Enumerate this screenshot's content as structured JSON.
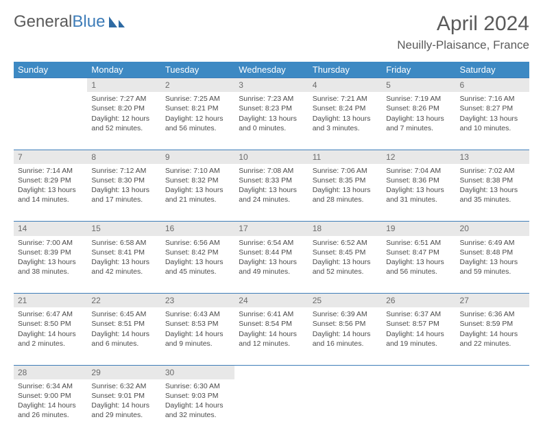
{
  "logo": {
    "part1": "General",
    "part2": "Blue"
  },
  "title": "April 2024",
  "location": "Neuilly-Plaisance, France",
  "header_color": "#3d89c3",
  "divider_color": "#3d7cb8",
  "daynum_bg": "#e8e8e8",
  "weekdays": [
    "Sunday",
    "Monday",
    "Tuesday",
    "Wednesday",
    "Thursday",
    "Friday",
    "Saturday"
  ],
  "weeks": [
    {
      "nums": [
        "",
        "1",
        "2",
        "3",
        "4",
        "5",
        "6"
      ],
      "cells": [
        null,
        {
          "sunrise": "Sunrise: 7:27 AM",
          "sunset": "Sunset: 8:20 PM",
          "day1": "Daylight: 12 hours",
          "day2": "and 52 minutes."
        },
        {
          "sunrise": "Sunrise: 7:25 AM",
          "sunset": "Sunset: 8:21 PM",
          "day1": "Daylight: 12 hours",
          "day2": "and 56 minutes."
        },
        {
          "sunrise": "Sunrise: 7:23 AM",
          "sunset": "Sunset: 8:23 PM",
          "day1": "Daylight: 13 hours",
          "day2": "and 0 minutes."
        },
        {
          "sunrise": "Sunrise: 7:21 AM",
          "sunset": "Sunset: 8:24 PM",
          "day1": "Daylight: 13 hours",
          "day2": "and 3 minutes."
        },
        {
          "sunrise": "Sunrise: 7:19 AM",
          "sunset": "Sunset: 8:26 PM",
          "day1": "Daylight: 13 hours",
          "day2": "and 7 minutes."
        },
        {
          "sunrise": "Sunrise: 7:16 AM",
          "sunset": "Sunset: 8:27 PM",
          "day1": "Daylight: 13 hours",
          "day2": "and 10 minutes."
        }
      ]
    },
    {
      "nums": [
        "7",
        "8",
        "9",
        "10",
        "11",
        "12",
        "13"
      ],
      "cells": [
        {
          "sunrise": "Sunrise: 7:14 AM",
          "sunset": "Sunset: 8:29 PM",
          "day1": "Daylight: 13 hours",
          "day2": "and 14 minutes."
        },
        {
          "sunrise": "Sunrise: 7:12 AM",
          "sunset": "Sunset: 8:30 PM",
          "day1": "Daylight: 13 hours",
          "day2": "and 17 minutes."
        },
        {
          "sunrise": "Sunrise: 7:10 AM",
          "sunset": "Sunset: 8:32 PM",
          "day1": "Daylight: 13 hours",
          "day2": "and 21 minutes."
        },
        {
          "sunrise": "Sunrise: 7:08 AM",
          "sunset": "Sunset: 8:33 PM",
          "day1": "Daylight: 13 hours",
          "day2": "and 24 minutes."
        },
        {
          "sunrise": "Sunrise: 7:06 AM",
          "sunset": "Sunset: 8:35 PM",
          "day1": "Daylight: 13 hours",
          "day2": "and 28 minutes."
        },
        {
          "sunrise": "Sunrise: 7:04 AM",
          "sunset": "Sunset: 8:36 PM",
          "day1": "Daylight: 13 hours",
          "day2": "and 31 minutes."
        },
        {
          "sunrise": "Sunrise: 7:02 AM",
          "sunset": "Sunset: 8:38 PM",
          "day1": "Daylight: 13 hours",
          "day2": "and 35 minutes."
        }
      ]
    },
    {
      "nums": [
        "14",
        "15",
        "16",
        "17",
        "18",
        "19",
        "20"
      ],
      "cells": [
        {
          "sunrise": "Sunrise: 7:00 AM",
          "sunset": "Sunset: 8:39 PM",
          "day1": "Daylight: 13 hours",
          "day2": "and 38 minutes."
        },
        {
          "sunrise": "Sunrise: 6:58 AM",
          "sunset": "Sunset: 8:41 PM",
          "day1": "Daylight: 13 hours",
          "day2": "and 42 minutes."
        },
        {
          "sunrise": "Sunrise: 6:56 AM",
          "sunset": "Sunset: 8:42 PM",
          "day1": "Daylight: 13 hours",
          "day2": "and 45 minutes."
        },
        {
          "sunrise": "Sunrise: 6:54 AM",
          "sunset": "Sunset: 8:44 PM",
          "day1": "Daylight: 13 hours",
          "day2": "and 49 minutes."
        },
        {
          "sunrise": "Sunrise: 6:52 AM",
          "sunset": "Sunset: 8:45 PM",
          "day1": "Daylight: 13 hours",
          "day2": "and 52 minutes."
        },
        {
          "sunrise": "Sunrise: 6:51 AM",
          "sunset": "Sunset: 8:47 PM",
          "day1": "Daylight: 13 hours",
          "day2": "and 56 minutes."
        },
        {
          "sunrise": "Sunrise: 6:49 AM",
          "sunset": "Sunset: 8:48 PM",
          "day1": "Daylight: 13 hours",
          "day2": "and 59 minutes."
        }
      ]
    },
    {
      "nums": [
        "21",
        "22",
        "23",
        "24",
        "25",
        "26",
        "27"
      ],
      "cells": [
        {
          "sunrise": "Sunrise: 6:47 AM",
          "sunset": "Sunset: 8:50 PM",
          "day1": "Daylight: 14 hours",
          "day2": "and 2 minutes."
        },
        {
          "sunrise": "Sunrise: 6:45 AM",
          "sunset": "Sunset: 8:51 PM",
          "day1": "Daylight: 14 hours",
          "day2": "and 6 minutes."
        },
        {
          "sunrise": "Sunrise: 6:43 AM",
          "sunset": "Sunset: 8:53 PM",
          "day1": "Daylight: 14 hours",
          "day2": "and 9 minutes."
        },
        {
          "sunrise": "Sunrise: 6:41 AM",
          "sunset": "Sunset: 8:54 PM",
          "day1": "Daylight: 14 hours",
          "day2": "and 12 minutes."
        },
        {
          "sunrise": "Sunrise: 6:39 AM",
          "sunset": "Sunset: 8:56 PM",
          "day1": "Daylight: 14 hours",
          "day2": "and 16 minutes."
        },
        {
          "sunrise": "Sunrise: 6:37 AM",
          "sunset": "Sunset: 8:57 PM",
          "day1": "Daylight: 14 hours",
          "day2": "and 19 minutes."
        },
        {
          "sunrise": "Sunrise: 6:36 AM",
          "sunset": "Sunset: 8:59 PM",
          "day1": "Daylight: 14 hours",
          "day2": "and 22 minutes."
        }
      ]
    },
    {
      "nums": [
        "28",
        "29",
        "30",
        "",
        "",
        "",
        ""
      ],
      "cells": [
        {
          "sunrise": "Sunrise: 6:34 AM",
          "sunset": "Sunset: 9:00 PM",
          "day1": "Daylight: 14 hours",
          "day2": "and 26 minutes."
        },
        {
          "sunrise": "Sunrise: 6:32 AM",
          "sunset": "Sunset: 9:01 PM",
          "day1": "Daylight: 14 hours",
          "day2": "and 29 minutes."
        },
        {
          "sunrise": "Sunrise: 6:30 AM",
          "sunset": "Sunset: 9:03 PM",
          "day1": "Daylight: 14 hours",
          "day2": "and 32 minutes."
        },
        null,
        null,
        null,
        null
      ]
    }
  ]
}
